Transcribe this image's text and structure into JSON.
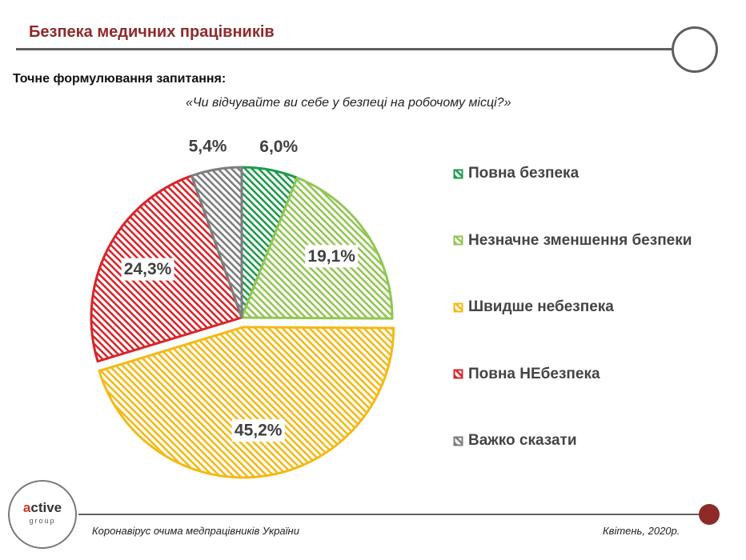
{
  "header": {
    "title": "Безпека медичних працівників",
    "question_label": "Точне формулювання запитання:",
    "question_text": "«Чи відчувайте ви себе у безпеці на робочому місці?»"
  },
  "chart_data": {
    "type": "pie",
    "categories": [
      "Повна безпека",
      "Незначне зменшення безпеки",
      "Швидше небезпека",
      "Повна НЕбезпека",
      "Важко сказати"
    ],
    "values": [
      6.0,
      19.1,
      45.2,
      24.3,
      5.4
    ],
    "labels": [
      "6,0%",
      "19,1%",
      "45,2%",
      "24,3%",
      "5,4%"
    ],
    "colors": [
      "#1f9a4c",
      "#92c653",
      "#f3b916",
      "#d7262b",
      "#7d7d7d"
    ],
    "pattern": "diagonal-hatch",
    "exploded_slice": "Швидше небезпека",
    "legend_position": "right",
    "start": "12 o'clock, clockwise"
  },
  "logo": {
    "brand_a": "a",
    "brand_rest": "ctive",
    "brand_sub": "group"
  },
  "footer": {
    "left": "Коронавірус очима медпрацівників України",
    "right": "Квітень, 2020р."
  }
}
